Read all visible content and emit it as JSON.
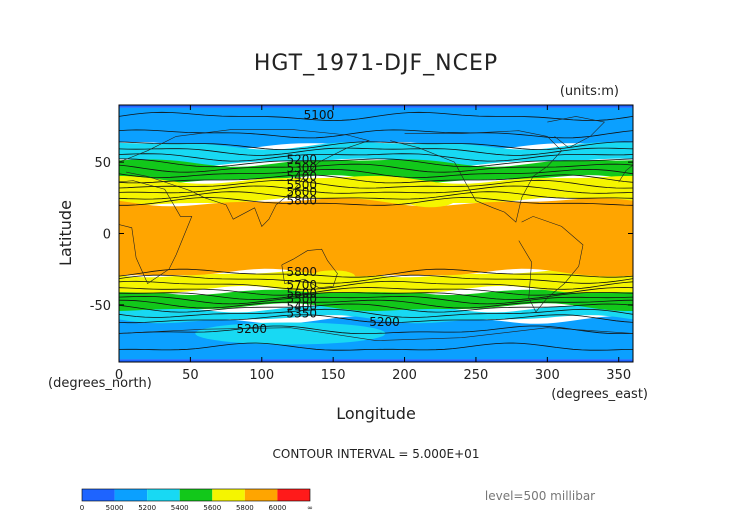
{
  "chart_data": {
    "type": "filled-contour-map",
    "title": "HGT_1971-DJF_NCEP",
    "units_label": "(units:m)",
    "xlabel": "Longitude",
    "ylabel": "Latitude",
    "x_unit_label": "(degrees_east)",
    "y_unit_label": "(degrees_north)",
    "xlim": [
      0,
      360
    ],
    "ylim": [
      -90,
      90
    ],
    "x_ticks": [
      0,
      50,
      100,
      150,
      200,
      250,
      300,
      350
    ],
    "y_ticks": [
      50,
      0,
      -50
    ],
    "contour_interval_text": "CONTOUR INTERVAL = 5.000E+01",
    "level_text": "level=500 millibar",
    "contour_labels": [
      {
        "value": "5100",
        "lon": 140,
        "lat": 83
      },
      {
        "value": "5200",
        "lon": 128,
        "lat": 52
      },
      {
        "value": "5300",
        "lon": 128,
        "lat": 46
      },
      {
        "value": "5400",
        "lon": 128,
        "lat": 40
      },
      {
        "value": "5500",
        "lon": 128,
        "lat": 34
      },
      {
        "value": "5600",
        "lon": 128,
        "lat": 29
      },
      {
        "value": "5800",
        "lon": 128,
        "lat": 23
      },
      {
        "value": "5800",
        "lon": 128,
        "lat": -27
      },
      {
        "value": "5700",
        "lon": 128,
        "lat": -36
      },
      {
        "value": "5600",
        "lon": 128,
        "lat": -42
      },
      {
        "value": "5500",
        "lon": 128,
        "lat": -46
      },
      {
        "value": "5400",
        "lon": 128,
        "lat": -51
      },
      {
        "value": "5350",
        "lon": 128,
        "lat": -56
      },
      {
        "value": "5200",
        "lon": 93,
        "lat": -67
      },
      {
        "value": "5200",
        "lon": 186,
        "lat": -62
      }
    ],
    "bands": [
      {
        "range": "<5000",
        "color": "#1e64ff",
        "nh_lat": [
          90,
          88
        ],
        "sh_lat": [
          -88,
          -90
        ]
      },
      {
        "range": "5000-5200",
        "color": "#0ba0ff",
        "nh_lat": [
          88,
          62
        ],
        "sh_lat": [
          -60,
          -88
        ]
      },
      {
        "range": "5200-5400",
        "color": "#18d9f3",
        "nh_lat": [
          62,
          50
        ],
        "sh_lat": [
          -52,
          -60
        ]
      },
      {
        "range": "5400-5600",
        "color": "#12c81a",
        "nh_lat": [
          50,
          38
        ],
        "sh_lat": [
          -40,
          -52
        ]
      },
      {
        "range": "5600-5800",
        "color": "#f5f500",
        "nh_lat": [
          38,
          22
        ],
        "sh_lat": [
          -28,
          -40
        ]
      },
      {
        "range": "5800-6000",
        "color": "#ffa500",
        "nh_lat": [
          22,
          -28
        ],
        "sh_lat": null
      }
    ],
    "colorbar": {
      "colors": [
        "#1e64ff",
        "#0ba0ff",
        "#18d9f3",
        "#12c81a",
        "#f5f500",
        "#ffa500",
        "#ff1a1a"
      ],
      "labels": [
        "0",
        "5000",
        "5200",
        "5400",
        "5600",
        "5800",
        "6000",
        "∞"
      ]
    }
  }
}
